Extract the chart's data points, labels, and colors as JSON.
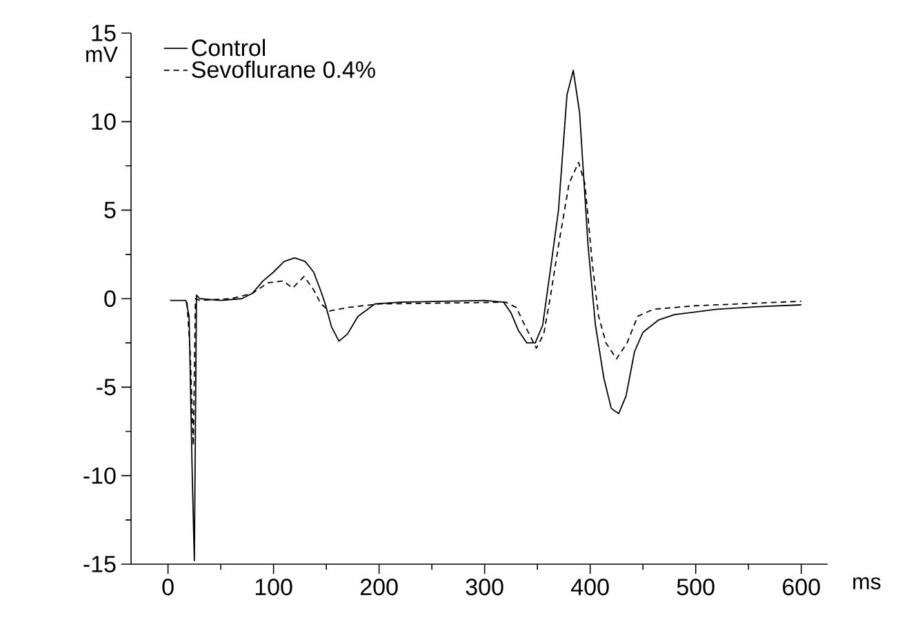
{
  "chart_data": {
    "type": "line",
    "xlabel": "ms",
    "ylabel": "mV",
    "xlim": [
      -35,
      625
    ],
    "ylim": [
      -15,
      15
    ],
    "xticks": [
      0,
      100,
      200,
      300,
      400,
      500,
      600
    ],
    "yticks": [
      -15,
      -10,
      -5,
      0,
      5,
      10,
      15
    ],
    "grid": false,
    "legend": "top left",
    "marker": "none",
    "series": [
      {
        "name": "Control",
        "color": "#000000",
        "line_style": "solid",
        "x": [
          2,
          17,
          20,
          23,
          25,
          27,
          30,
          50,
          70,
          80,
          90,
          100,
          110,
          120,
          130,
          138,
          145,
          149,
          155,
          162,
          170,
          180,
          196,
          220,
          300,
          318,
          325,
          332,
          340,
          348,
          355,
          362,
          370,
          378,
          384,
          390,
          398,
          405,
          413,
          420,
          427,
          434,
          442,
          450,
          465,
          480,
          520,
          560,
          600
        ],
        "values": [
          -0.1,
          -0.1,
          -1,
          -10,
          -14.8,
          0.2,
          0.0,
          -0.1,
          0.0,
          0.3,
          1.0,
          1.5,
          2.1,
          2.3,
          2.1,
          1.5,
          0.4,
          -0.3,
          -1.6,
          -2.4,
          -2.0,
          -1.0,
          -0.3,
          -0.2,
          -0.1,
          -0.2,
          -0.8,
          -1.8,
          -2.5,
          -2.5,
          -1.5,
          1.5,
          5,
          11.5,
          12.9,
          10.5,
          3,
          -1.5,
          -4.5,
          -6.2,
          -6.5,
          -5.5,
          -3,
          -1.9,
          -1.2,
          -0.9,
          -0.6,
          -0.45,
          -0.35
        ]
      },
      {
        "name": "Sevoflurane 0.4%",
        "color": "#000000",
        "line_style": "dashed",
        "x": [
          18,
          21,
          24,
          26,
          30,
          60,
          80,
          95,
          109,
          118,
          129,
          138,
          145,
          153,
          170,
          200,
          320,
          330,
          338,
          349,
          356,
          362,
          370,
          380,
          389,
          395,
          402,
          408,
          415,
          425,
          435,
          445,
          460,
          500,
          560,
          600
        ],
        "values": [
          -0.2,
          -3,
          -8.3,
          0,
          -0.1,
          0.0,
          0.3,
          0.9,
          1.0,
          0.6,
          1.25,
          0.5,
          -0.3,
          -0.7,
          -0.5,
          -0.3,
          -0.2,
          -0.5,
          -1.5,
          -2.8,
          -2.0,
          0,
          3,
          6.5,
          7.7,
          6.5,
          2,
          -1,
          -2.5,
          -3.4,
          -2.5,
          -1,
          -0.6,
          -0.4,
          -0.25,
          -0.15
        ]
      }
    ]
  }
}
